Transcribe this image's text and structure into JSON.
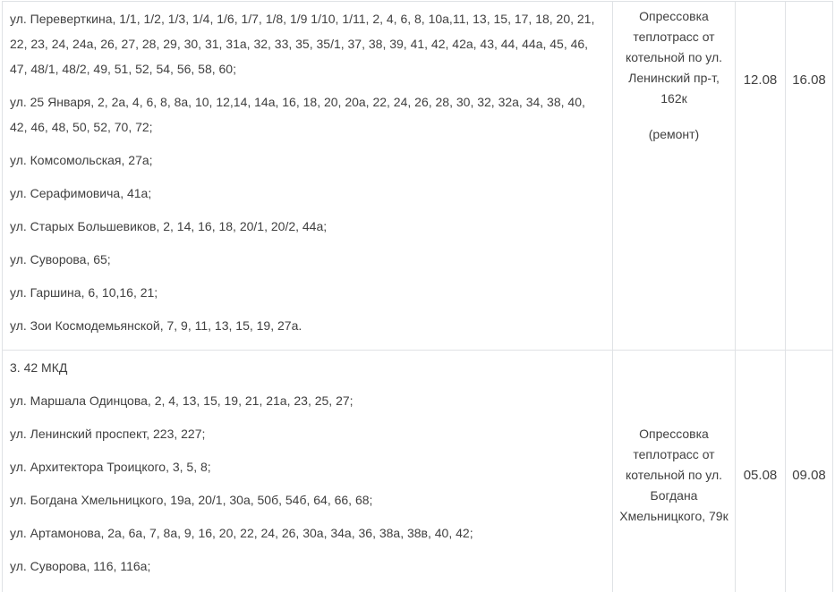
{
  "page": {
    "background_color": "#ffffff",
    "text_color": "#404040",
    "border_color": "#dfe2e5"
  },
  "table": {
    "rows": [
      {
        "addresses": [
          "ул. Переверткина, 1/1, 1/2, 1/3, 1/4, 1/6, 1/7, 1/8, 1/9 1/10, 1/11, 2, 4, 6, 8, 10а,11, 13, 15, 17, 18, 20, 21, 22, 23, 24, 24а, 26, 27, 28, 29, 30, 31, 31а, 32, 33, 35, 35/1, 37, 38, 39, 41, 42, 42а, 43, 44, 44а, 45, 46, 47, 48/1, 48/2, 49, 51, 52, 54, 56, 58, 60;",
          "ул. 25 Января, 2, 2а, 4, 6, 8, 8а, 10, 12,14, 14а, 16, 18, 20, 20а, 22, 24, 26, 28, 30, 32, 32а, 34, 38, 40, 42, 46, 48, 50, 52, 70, 72;",
          "ул. Комсомольская, 27а;",
          "ул. Серафимовича, 41а;",
          "ул. Старых Большевиков, 2, 14, 16, 18, 20/1, 20/2, 44а;",
          "ул. Суворова, 65;",
          "ул. Гаршина, 6, 10,16, 21;",
          "ул. Зои Космодемьянской, 7, 9, 11, 13, 15, 19, 27а."
        ],
        "reason_lines": [
          "Опрессовка",
          "теплотрасс от",
          "котельной по ул.",
          "Ленинский пр-т,",
          "162к"
        ],
        "reason_note": "(ремонт)",
        "start_date": "12.08",
        "end_date": "16.08"
      },
      {
        "addresses": [
          "3. 42 МКД",
          "ул. Маршала Одинцова, 2, 4, 13, 15, 19, 21, 21а, 23, 25, 27;",
          "ул. Ленинский проспект, 223, 227;",
          "ул. Архитектора Троицкого, 3, 5, 8;",
          "ул. Богдана Хмельницкого, 19а, 20/1, 30а, 50б, 54б, 64, 66, 68;",
          "ул. Артамонова, 2а, 6а, 7, 8а, 9, 16, 20, 22, 24, 26, 30а, 34а, 36, 38а, 38в, 40, 42;",
          "ул. Суворова, 116, 116а;"
        ],
        "reason_lines": [
          "Опрессовка",
          "теплотрасс от",
          "котельной по ул.",
          "Богдана",
          "Хмельницкого, 79к"
        ],
        "start_date": "05.08",
        "end_date": "09.08"
      }
    ]
  }
}
